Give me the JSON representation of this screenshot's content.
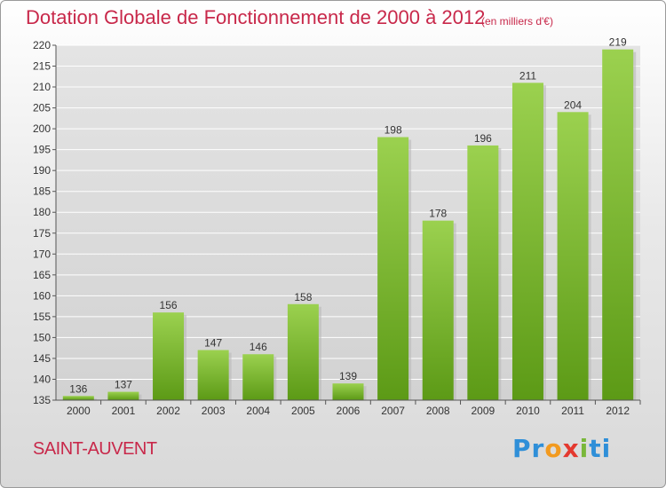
{
  "header": {
    "title": "Dotation Globale de Fonctionnement de 2000 à 2012",
    "unit": "(en milliers d'€)"
  },
  "footer": {
    "town": "SAINT-AUVENT",
    "logo_letters": [
      "P",
      "r",
      "o",
      "x",
      "i",
      "ti"
    ]
  },
  "colors": {
    "title": "#c8284a",
    "bar_top": "#9bd14f",
    "bar_bottom": "#5c9a16",
    "grid": "#ffffff",
    "plot_bg": "#d8d8d8"
  },
  "chart_data": {
    "type": "bar",
    "categories": [
      "2000",
      "2001",
      "2002",
      "2003",
      "2004",
      "2005",
      "2006",
      "2007",
      "2008",
      "2009",
      "2010",
      "2011",
      "2012"
    ],
    "values": [
      136,
      137,
      156,
      147,
      146,
      158,
      139,
      198,
      178,
      196,
      211,
      204,
      219
    ],
    "data_labels": [
      "136",
      "137",
      "156",
      "147",
      "146",
      "158",
      "139",
      "198",
      "178",
      "196",
      "211",
      "204",
      "219"
    ],
    "ylim": [
      135,
      220
    ],
    "yticks": [
      135,
      140,
      145,
      150,
      155,
      160,
      165,
      170,
      175,
      180,
      185,
      190,
      195,
      200,
      205,
      210,
      215,
      220
    ],
    "ytick_labels": [
      "135",
      "140",
      "145",
      "150",
      "155",
      "160",
      "165",
      "170",
      "175",
      "180",
      "185",
      "190",
      "195",
      "200",
      "205",
      "210",
      "215",
      "220"
    ],
    "grid": true,
    "title": "Dotation Globale de Fonctionnement de 2000 à 2012",
    "xlabel": "",
    "ylabel": ""
  }
}
